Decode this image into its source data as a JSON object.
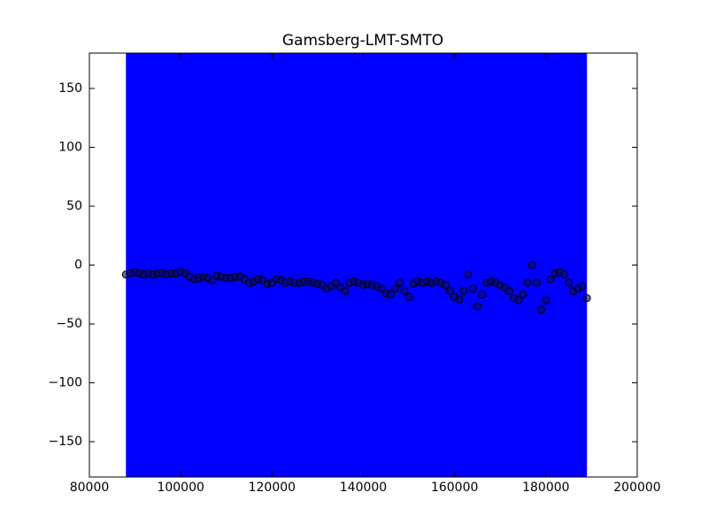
{
  "chart_data": {
    "type": "scatter",
    "title": "Gamsberg-LMT-SMTO",
    "xlim": [
      80000,
      200000
    ],
    "ylim": [
      -180,
      180
    ],
    "xticks": [
      80000,
      100000,
      120000,
      140000,
      160000,
      180000,
      200000
    ],
    "yticks": [
      {
        "value": -150,
        "label": "−150"
      },
      {
        "value": -100,
        "label": "−100"
      },
      {
        "value": -50,
        "label": "−50"
      },
      0,
      50,
      100,
      150
    ],
    "span": {
      "xmin": 88000,
      "xmax": 189000,
      "color": "#0000ff"
    },
    "color": "#0a0a6e",
    "x": [
      88000,
      89000,
      90000,
      91000,
      92000,
      93000,
      94000,
      95000,
      96000,
      97000,
      98000,
      99000,
      100000,
      101000,
      102000,
      103000,
      104000,
      105000,
      106000,
      107000,
      108000,
      109000,
      110000,
      111000,
      112000,
      113000,
      114000,
      115000,
      116000,
      117000,
      118000,
      119000,
      120000,
      121000,
      122000,
      123000,
      124000,
      125000,
      126000,
      127000,
      128000,
      129000,
      130000,
      131000,
      132000,
      133000,
      134000,
      135000,
      136000,
      137000,
      138000,
      139000,
      140000,
      141000,
      142000,
      143000,
      144000,
      145000,
      146000,
      147000,
      148000,
      149000,
      150000,
      151000,
      152000,
      153000,
      154000,
      155000,
      156000,
      157000,
      158000,
      159000,
      160000,
      161000,
      162000,
      163000,
      164000,
      165000,
      166000,
      167000,
      168000,
      169000,
      170000,
      171000,
      172000,
      173000,
      174000,
      175000,
      176000,
      177000,
      178000,
      179000,
      180000,
      181000,
      182000,
      183000,
      184000,
      185000,
      186000,
      187000,
      188000,
      189000
    ],
    "values": [
      -8,
      -7,
      -6,
      -7,
      -8,
      -7,
      -8,
      -7,
      -7,
      -8,
      -7,
      -7,
      -6,
      -7,
      -10,
      -12,
      -11,
      -10,
      -11,
      -13,
      -9,
      -10,
      -11,
      -11,
      -10,
      -10,
      -12,
      -15,
      -14,
      -12,
      -13,
      -16,
      -15,
      -12,
      -13,
      -15,
      -14,
      -15,
      -15,
      -14,
      -14,
      -15,
      -16,
      -17,
      -20,
      -18,
      -15,
      -19,
      -22,
      -15,
      -14,
      -15,
      -17,
      -16,
      -17,
      -18,
      -20,
      -24,
      -25,
      -20,
      -15,
      -22,
      -27,
      -16,
      -14,
      -15,
      -14,
      -15,
      -14,
      -15,
      -17,
      -22,
      -27,
      -29,
      -22,
      -8,
      -20,
      -35,
      -25,
      -15,
      -14,
      -15,
      -17,
      -19,
      -22,
      -28,
      -30,
      -25,
      -15,
      0,
      -15,
      -38,
      -30,
      -12,
      -7,
      -6,
      -8,
      -15,
      -22,
      -20,
      -18,
      -28
    ]
  }
}
